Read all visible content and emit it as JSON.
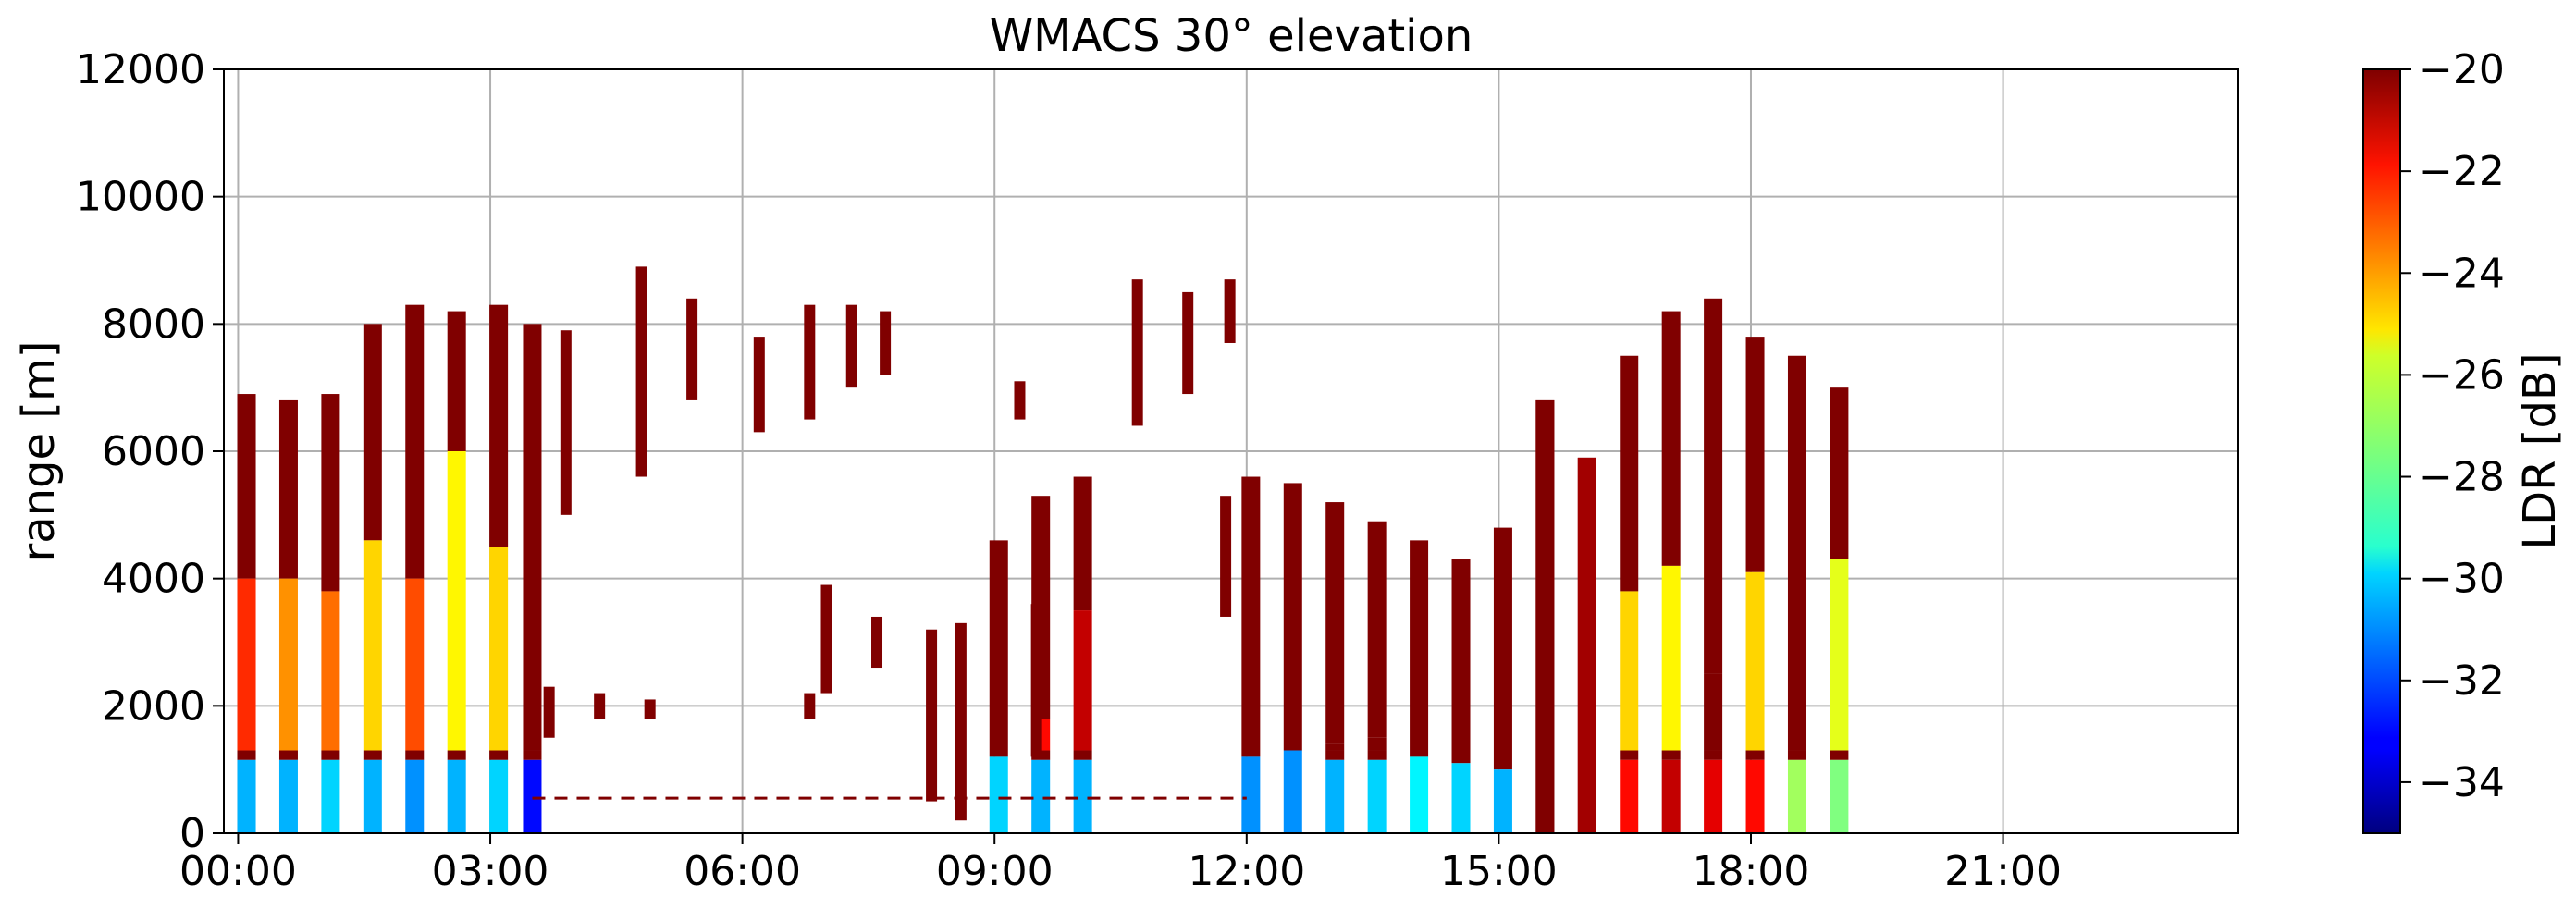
{
  "chart_data": {
    "type": "heatmap",
    "title": "WMACS 30° elevation",
    "xlabel": "",
    "ylabel": "range [m]",
    "xlim_hours": [
      -0.17,
      23.8
    ],
    "ylim": [
      0,
      12000
    ],
    "x_ticks": [
      {
        "hour": 0,
        "label": "00:00"
      },
      {
        "hour": 3,
        "label": "03:00"
      },
      {
        "hour": 6,
        "label": "06:00"
      },
      {
        "hour": 9,
        "label": "09:00"
      },
      {
        "hour": 12,
        "label": "12:00"
      },
      {
        "hour": 15,
        "label": "15:00"
      },
      {
        "hour": 18,
        "label": "18:00"
      },
      {
        "hour": 21,
        "label": "21:00"
      }
    ],
    "y_ticks": [
      {
        "value": 0,
        "label": "0"
      },
      {
        "value": 2000,
        "label": "2000"
      },
      {
        "value": 4000,
        "label": "4000"
      },
      {
        "value": 6000,
        "label": "6000"
      },
      {
        "value": 8000,
        "label": "8000"
      },
      {
        "value": 10000,
        "label": "10000"
      },
      {
        "value": 12000,
        "label": "12000"
      }
    ],
    "grid": true,
    "colorbar": {
      "label": "LDR [dB]",
      "range": [
        -35,
        -20
      ],
      "colormap": "jet",
      "ticks": [
        {
          "value": -20,
          "label": "−20"
        },
        {
          "value": -22,
          "label": "−22"
        },
        {
          "value": -24,
          "label": "−24"
        },
        {
          "value": -26,
          "label": "−26"
        },
        {
          "value": -28,
          "label": "−28"
        },
        {
          "value": -30,
          "label": "−30"
        },
        {
          "value": -32,
          "label": "−32"
        },
        {
          "value": -34,
          "label": "−34"
        }
      ]
    },
    "stripes": [
      {
        "t": 0.1,
        "top": 6900,
        "ldr_low": -30.5,
        "ldr_mid": -22.5,
        "mid_top": 4000
      },
      {
        "t": 0.6,
        "top": 6800,
        "ldr_low": -30.5,
        "ldr_mid": -24,
        "mid_top": 4000
      },
      {
        "t": 1.1,
        "top": 6900,
        "ldr_low": -30,
        "ldr_mid": -23.5,
        "mid_top": 3800
      },
      {
        "t": 1.6,
        "top": 8000,
        "ldr_low": -30.5,
        "ldr_mid": -25,
        "mid_top": 4600
      },
      {
        "t": 2.1,
        "top": 8300,
        "ldr_low": -31,
        "ldr_mid": -23,
        "mid_top": 4000
      },
      {
        "t": 2.6,
        "top": 8200,
        "ldr_low": -30.5,
        "ldr_mid": -25.5,
        "mid_top": 6000
      },
      {
        "t": 3.1,
        "top": 8300,
        "ldr_low": -30,
        "ldr_mid": -25,
        "mid_top": 4500
      },
      {
        "t": 3.5,
        "top": 8000,
        "ldr_low": -33,
        "ldr_mid": -20,
        "mid_top": 2000
      },
      {
        "t": 9.05,
        "top": 4600,
        "ldr_low": -30,
        "ldr_mid": -20,
        "mid_top": 1200
      },
      {
        "t": 9.55,
        "top": 5300,
        "ldr_low": -30.5,
        "ldr_mid": -22,
        "mid_top": 1800
      },
      {
        "t": 10.05,
        "top": 5600,
        "ldr_low": -30.5,
        "ldr_mid": -21,
        "mid_top": 3500
      },
      {
        "t": 12.05,
        "top": 5600,
        "ldr_low": -31,
        "ldr_mid": -20,
        "mid_top": 1200
      },
      {
        "t": 12.55,
        "top": 5500,
        "ldr_low": -31,
        "ldr_mid": -20,
        "mid_top": 1300
      },
      {
        "t": 13.05,
        "top": 5200,
        "ldr_low": -30.5,
        "ldr_mid": -20,
        "mid_top": 1400
      },
      {
        "t": 13.55,
        "top": 4900,
        "ldr_low": -30,
        "ldr_mid": -20,
        "mid_top": 1500
      },
      {
        "t": 14.05,
        "top": 4600,
        "ldr_low": -29.5,
        "ldr_mid": -20,
        "mid_top": 1200
      },
      {
        "t": 14.55,
        "top": 4300,
        "ldr_low": -30,
        "ldr_mid": -20,
        "mid_top": 1100
      },
      {
        "t": 15.05,
        "top": 4800,
        "ldr_low": -30.5,
        "ldr_mid": -20,
        "mid_top": 1000
      },
      {
        "t": 15.55,
        "top": 6800,
        "ldr_low": -20,
        "ldr_mid": -20,
        "mid_top": 0
      },
      {
        "t": 16.05,
        "top": 5900,
        "ldr_low": -20.5,
        "ldr_mid": -20,
        "mid_top": 0
      },
      {
        "t": 16.55,
        "top": 7500,
        "ldr_low": -22,
        "ldr_mid": -25,
        "mid_top": 3800
      },
      {
        "t": 17.05,
        "top": 8200,
        "ldr_low": -21,
        "ldr_mid": -25.5,
        "mid_top": 4200
      },
      {
        "t": 17.55,
        "top": 8400,
        "ldr_low": -21.5,
        "ldr_mid": -20,
        "mid_top": 2500
      },
      {
        "t": 18.05,
        "top": 7800,
        "ldr_low": -22,
        "ldr_mid": -25,
        "mid_top": 4100
      },
      {
        "t": 18.55,
        "top": 7500,
        "ldr_low": -27,
        "ldr_mid": -20,
        "mid_top": 2000
      },
      {
        "t": 19.05,
        "top": 7000,
        "ldr_low": -27.5,
        "ldr_mid": -26,
        "mid_top": 4300
      }
    ],
    "scattered_echoes": [
      {
        "t": 3.9,
        "bottom": 5000,
        "top": 7900,
        "ldr": -20
      },
      {
        "t": 4.8,
        "bottom": 5600,
        "top": 8900,
        "ldr": -20
      },
      {
        "t": 5.4,
        "bottom": 6800,
        "top": 8400,
        "ldr": -20
      },
      {
        "t": 6.2,
        "bottom": 6300,
        "top": 7800,
        "ldr": -20
      },
      {
        "t": 6.8,
        "bottom": 6500,
        "top": 8300,
        "ldr": -20
      },
      {
        "t": 7.3,
        "bottom": 7000,
        "top": 8300,
        "ldr": -20
      },
      {
        "t": 7.7,
        "bottom": 7200,
        "top": 8200,
        "ldr": -20
      },
      {
        "t": 9.3,
        "bottom": 6500,
        "top": 7100,
        "ldr": -20
      },
      {
        "t": 10.7,
        "bottom": 6400,
        "top": 8700,
        "ldr": -20
      },
      {
        "t": 11.3,
        "bottom": 6900,
        "top": 8500,
        "ldr": -20
      },
      {
        "t": 11.8,
        "bottom": 7700,
        "top": 8700,
        "ldr": -20
      },
      {
        "t": 7.0,
        "bottom": 2200,
        "top": 3900,
        "ldr": -20
      },
      {
        "t": 7.6,
        "bottom": 2600,
        "top": 3400,
        "ldr": -20
      },
      {
        "t": 8.25,
        "bottom": 500,
        "top": 3200,
        "ldr": -20
      },
      {
        "t": 8.6,
        "bottom": 200,
        "top": 3300,
        "ldr": -20
      },
      {
        "t": 9.5,
        "bottom": 1200,
        "top": 3600,
        "ldr": -20
      },
      {
        "t": 11.75,
        "bottom": 3400,
        "top": 5300,
        "ldr": -20
      },
      {
        "t": 3.7,
        "bottom": 1500,
        "top": 2300,
        "ldr": -20
      },
      {
        "t": 4.3,
        "bottom": 1800,
        "top": 2200,
        "ldr": -20
      },
      {
        "t": 4.9,
        "bottom": 1800,
        "top": 2100,
        "ldr": -20
      },
      {
        "t": 6.8,
        "bottom": 1800,
        "top": 2200,
        "ldr": -20
      }
    ],
    "dashed_line": {
      "t_start": 3.5,
      "t_end": 12.0,
      "range": 550,
      "ldr": -20
    }
  }
}
